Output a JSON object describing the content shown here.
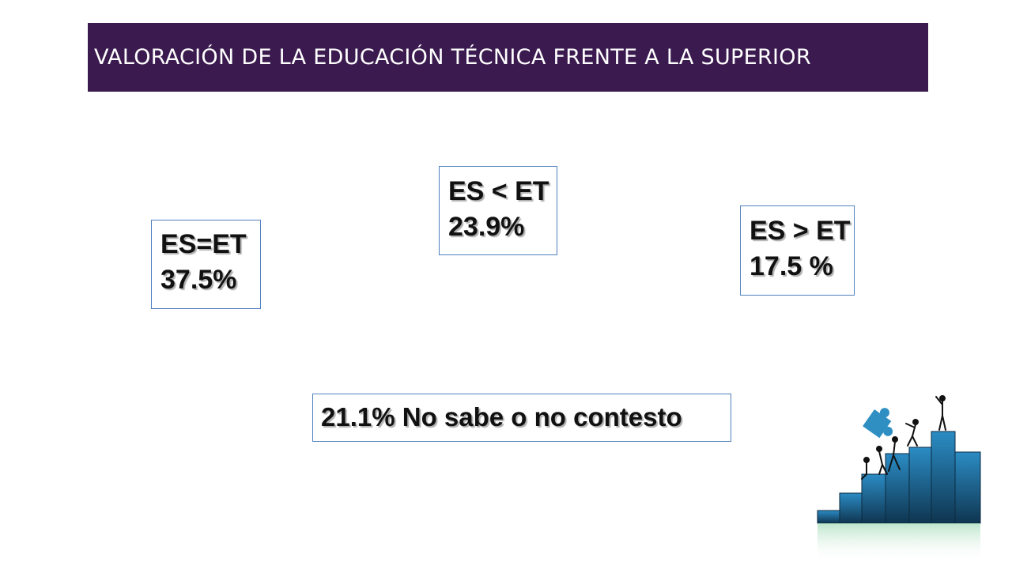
{
  "header": {
    "title": "VALORACIÓN DE LA EDUCACIÓN TÉCNICA FRENTE A LA SUPERIOR"
  },
  "stats": {
    "equal": {
      "label": "ES=ET",
      "value": "37.5%"
    },
    "less": {
      "label": "ES < ET",
      "value": "23.9%"
    },
    "greater": {
      "label": "ES > ET",
      "value": "17.5 %"
    }
  },
  "no_answer": {
    "text": "21.1% No sabe o no contesto"
  },
  "colors": {
    "title_bg": "#3b1a4f",
    "box_border": "#4f81bd",
    "puzzle": "#1b4f72"
  },
  "decoration": {
    "icon": "puzzle-stairs-teamwork-illustration"
  }
}
